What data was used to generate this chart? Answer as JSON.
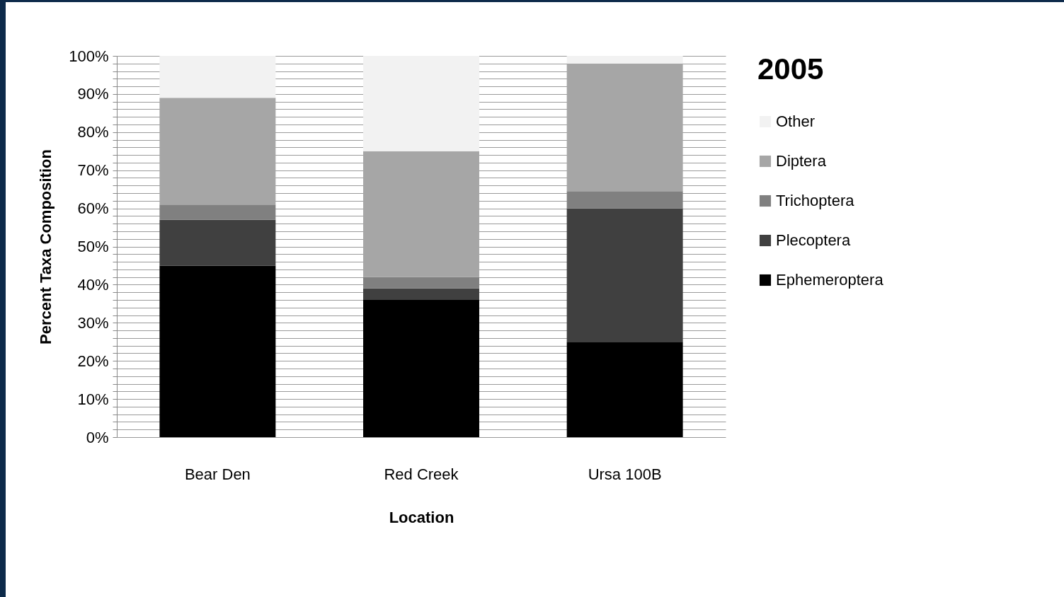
{
  "chart_data": {
    "type": "bar",
    "stacked": true,
    "xlabel": "Location",
    "ylabel": "Percent Taxa Composition",
    "legend_title": "2005",
    "legend": "right",
    "grid": "y",
    "categories": [
      "Bear Den",
      "Red Creek",
      "Ursa 100B"
    ],
    "series": [
      {
        "name": "Ephemeroptera",
        "color": "#000000",
        "values": [
          45,
          36,
          25
        ]
      },
      {
        "name": "Plecoptera",
        "color": "#404040",
        "values": [
          12,
          3,
          35
        ]
      },
      {
        "name": "Trichoptera",
        "color": "#808080",
        "values": [
          4,
          3,
          4.5
        ]
      },
      {
        "name": "Diptera",
        "color": "#a6a6a6",
        "values": [
          28,
          33,
          33.5
        ]
      },
      {
        "name": "Other",
        "color": "#f2f2f2",
        "values": [
          11,
          25,
          2
        ]
      }
    ],
    "ylim": [
      0,
      100
    ],
    "yticks": [
      {
        "value": 0,
        "label": "0%"
      },
      {
        "value": 2,
        "label": null
      },
      {
        "value": 4,
        "label": null
      },
      {
        "value": 6,
        "label": null
      },
      {
        "value": 8,
        "label": null
      },
      {
        "value": 10,
        "label": "10%"
      },
      {
        "value": 12,
        "label": null
      },
      {
        "value": 14,
        "label": null
      },
      {
        "value": 16,
        "label": null
      },
      {
        "value": 18,
        "label": null
      },
      {
        "value": 20,
        "label": "20%"
      },
      {
        "value": 22,
        "label": null
      },
      {
        "value": 24,
        "label": null
      },
      {
        "value": 26,
        "label": null
      },
      {
        "value": 28,
        "label": null
      },
      {
        "value": 30,
        "label": "30%"
      },
      {
        "value": 32,
        "label": null
      },
      {
        "value": 34,
        "label": null
      },
      {
        "value": 36,
        "label": null
      },
      {
        "value": 38,
        "label": null
      },
      {
        "value": 40,
        "label": "40%"
      },
      {
        "value": 42,
        "label": null
      },
      {
        "value": 44,
        "label": null
      },
      {
        "value": 46,
        "label": null
      },
      {
        "value": 48,
        "label": null
      },
      {
        "value": 50,
        "label": "50%"
      },
      {
        "value": 52,
        "label": null
      },
      {
        "value": 54,
        "label": null
      },
      {
        "value": 56,
        "label": null
      },
      {
        "value": 58,
        "label": null
      },
      {
        "value": 60,
        "label": "60%"
      },
      {
        "value": 62,
        "label": null
      },
      {
        "value": 64,
        "label": null
      },
      {
        "value": 66,
        "label": null
      },
      {
        "value": 68,
        "label": null
      },
      {
        "value": 70,
        "label": "70%"
      },
      {
        "value": 72,
        "label": null
      },
      {
        "value": 74,
        "label": null
      },
      {
        "value": 76,
        "label": null
      },
      {
        "value": 78,
        "label": null
      },
      {
        "value": 80,
        "label": "80%"
      },
      {
        "value": 82,
        "label": null
      },
      {
        "value": 84,
        "label": null
      },
      {
        "value": 86,
        "label": null
      },
      {
        "value": 88,
        "label": null
      },
      {
        "value": 90,
        "label": "90%"
      },
      {
        "value": 92,
        "label": null
      },
      {
        "value": 94,
        "label": null
      },
      {
        "value": 96,
        "label": null
      },
      {
        "value": 98,
        "label": null
      },
      {
        "value": 100,
        "label": "100%"
      }
    ]
  }
}
